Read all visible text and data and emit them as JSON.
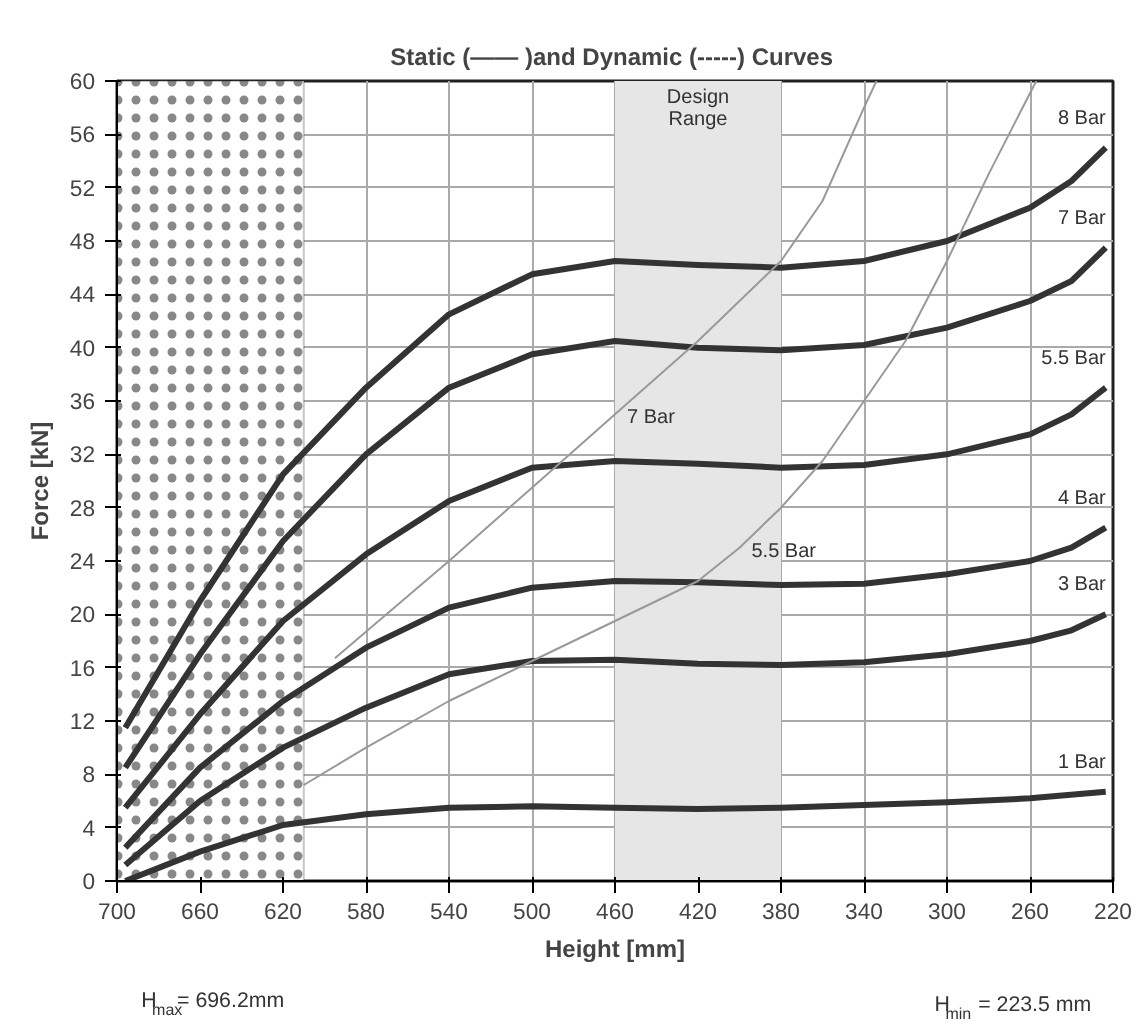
{
  "chart_data": {
    "type": "line",
    "title": "Static (—— )and Dynamic (-----)  Curves",
    "xlabel": "Height [mm]",
    "ylabel": "Force [kN]",
    "xlim": [
      700,
      220
    ],
    "ylim": [
      0,
      60
    ],
    "xticks": [
      700,
      660,
      620,
      580,
      540,
      500,
      460,
      420,
      380,
      340,
      300,
      260,
      220
    ],
    "yticks": [
      0,
      4,
      8,
      12,
      16,
      20,
      24,
      28,
      32,
      36,
      40,
      44,
      48,
      52,
      56,
      60
    ],
    "grid": true,
    "marker": "none",
    "line_style": "solid",
    "series": [
      {
        "name": "8 Bar",
        "color": "#333333",
        "x": [
          696,
          660,
          620,
          580,
          540,
          500,
          460,
          420,
          380,
          340,
          300,
          260,
          240,
          223.5
        ],
        "values": [
          11.5,
          21,
          30.5,
          37,
          42.5,
          45.5,
          46.5,
          46.2,
          46,
          46.5,
          48,
          50.5,
          52.5,
          55
        ]
      },
      {
        "name": "7 Bar",
        "color": "#333333",
        "x": [
          696,
          660,
          620,
          580,
          540,
          500,
          460,
          420,
          380,
          340,
          300,
          260,
          240,
          223.5
        ],
        "values": [
          8.5,
          17,
          25.5,
          32,
          37,
          39.5,
          40.5,
          40,
          39.8,
          40.2,
          41.5,
          43.5,
          45,
          47.5
        ]
      },
      {
        "name": "5.5 Bar",
        "color": "#333333",
        "x": [
          696,
          660,
          620,
          580,
          540,
          500,
          460,
          420,
          380,
          340,
          300,
          260,
          240,
          223.5
        ],
        "values": [
          5.5,
          12.5,
          19.5,
          24.5,
          28.5,
          31,
          31.5,
          31.3,
          31,
          31.2,
          32,
          33.5,
          35,
          37
        ]
      },
      {
        "name": "4 Bar",
        "color": "#333333",
        "x": [
          696,
          660,
          620,
          580,
          540,
          500,
          460,
          420,
          380,
          340,
          300,
          260,
          240,
          223.5
        ],
        "values": [
          2.5,
          8.5,
          13.5,
          17.5,
          20.5,
          22,
          22.5,
          22.4,
          22.2,
          22.3,
          23,
          24,
          25,
          26.5
        ]
      },
      {
        "name": "3 Bar",
        "color": "#333333",
        "x": [
          696,
          660,
          620,
          580,
          540,
          500,
          460,
          420,
          380,
          340,
          300,
          260,
          240,
          223.5
        ],
        "values": [
          1.2,
          6,
          10,
          13,
          15.5,
          16.5,
          16.6,
          16.3,
          16.2,
          16.4,
          17,
          18,
          18.8,
          20
        ]
      },
      {
        "name": "1 Bar",
        "color": "#333333",
        "x": [
          696,
          660,
          620,
          580,
          540,
          500,
          460,
          420,
          380,
          340,
          300,
          260,
          223.5
        ],
        "values": [
          0,
          2.2,
          4.2,
          5,
          5.5,
          5.6,
          5.5,
          5.4,
          5.5,
          5.7,
          5.9,
          6.2,
          6.7
        ]
      },
      {
        "name": "7 Bar",
        "color": "#999999",
        "x": [
          595,
          540,
          500,
          460,
          420,
          380,
          360,
          340,
          334
        ],
        "values": [
          16.7,
          24,
          29.5,
          35,
          40.5,
          46.5,
          51,
          58,
          60
        ]
      },
      {
        "name": "5.5 Bar",
        "color": "#999999",
        "x": [
          610,
          580,
          540,
          500,
          460,
          420,
          400,
          380,
          360,
          340,
          320,
          300,
          280,
          257
        ],
        "values": [
          7.2,
          10,
          13.5,
          16.5,
          19.5,
          22.5,
          25,
          28,
          31.5,
          36,
          40.5,
          46.5,
          53,
          60
        ]
      }
    ],
    "bands": [
      {
        "axis": "x",
        "from": 700,
        "to": 610,
        "color": "#ffffff"
      },
      {
        "axis": "x",
        "from": 460,
        "to": 380,
        "label": "Design Range",
        "color": "#e6e6e6"
      }
    ],
    "annotations": [
      "H$_{max}$= 696.2mm",
      "H$_{min}$ = 223.5 mm"
    ]
  }
}
